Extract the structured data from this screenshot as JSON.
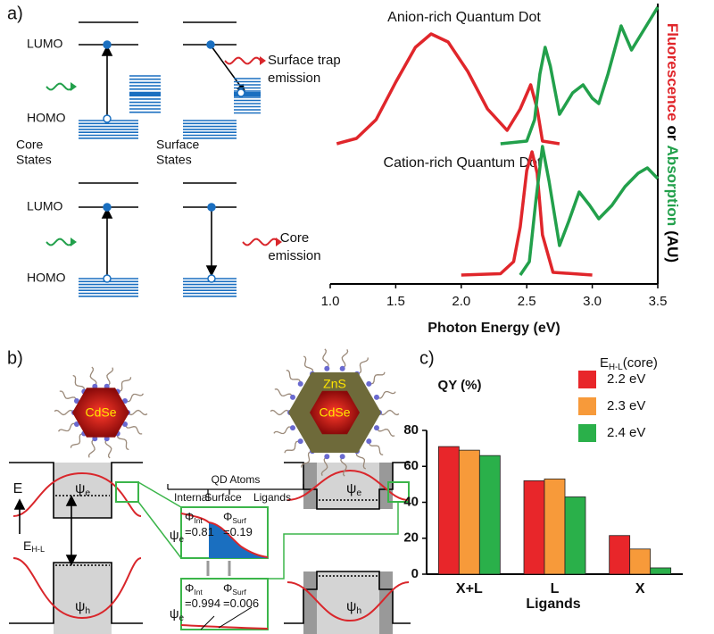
{
  "panel_labels": [
    "a)",
    "b)",
    "c)"
  ],
  "energy_diagrams": {
    "top": {
      "lumo": "LUMO",
      "homo": "HOMO",
      "core_states": [
        "Core",
        "States"
      ],
      "surface_states": [
        "Surface",
        "States"
      ],
      "emission": [
        "Surface trap",
        "emission"
      ]
    },
    "bottom": {
      "lumo": "LUMO",
      "homo": "HOMO",
      "emission": [
        "Core",
        "emission"
      ]
    }
  },
  "panel_b": {
    "particles": [
      {
        "core": "CdSe"
      },
      {
        "shell": "ZnS",
        "core": "CdSe"
      }
    ],
    "qd_atoms": {
      "title": "QD Atoms",
      "regions": [
        "Internal",
        "Surface",
        "Ligands"
      ]
    },
    "energy_axis": "E",
    "gap_label": {
      "symbol": "E",
      "sub": "H-L"
    },
    "band_labels": [
      {
        "symbol": "ψ",
        "sub": "e"
      },
      {
        "symbol": "ψ",
        "sub": "h"
      },
      {
        "symbol": "ψ",
        "sub": "e"
      },
      {
        "symbol": "ψ",
        "sub": "h"
      }
    ],
    "insets": [
      {
        "psi": {
          "symbol": "ψ",
          "sub": "e"
        },
        "phi_int": {
          "symbol": "Φ",
          "sub": "Int",
          "value": "=0.81"
        },
        "phi_surf": {
          "symbol": "Φ",
          "sub": "Surf",
          "value": "=0.19"
        }
      },
      {
        "psi": {
          "symbol": "ψ",
          "sub": "e"
        },
        "phi_int": {
          "symbol": "Φ",
          "sub": "Int",
          "value": "=0.994"
        },
        "phi_surf": {
          "symbol": "Φ",
          "sub": "Surf",
          "value": "=0.006"
        }
      }
    ]
  },
  "chart_data": [
    {
      "type": "line",
      "annotations": [
        "Anion-rich Quantum Dot",
        "Cation-rich Quantum Dot"
      ],
      "xlabel": "Photon Energy (eV)",
      "ylabel_parts": [
        {
          "text": "Fluorescence",
          "color": "#e0262b"
        },
        {
          "text": "or",
          "color": "#000000"
        },
        {
          "text": "Absorption",
          "color": "#22a04b"
        },
        {
          "text": "(AU)",
          "color": "#000000"
        }
      ],
      "xlim": [
        1.0,
        3.5
      ],
      "xticks": [
        {
          "value": 1,
          "label": "1.0"
        },
        1.5,
        {
          "value": 2,
          "label": "2.0"
        },
        2.5,
        {
          "value": 3,
          "label": "3.0"
        },
        3.5
      ],
      "ylim": [
        0,
        10
      ],
      "series": [
        {
          "color": "#e0262b",
          "x": [
            1.05,
            1.2,
            1.35,
            1.5,
            1.65,
            1.77,
            1.9,
            2.05,
            2.2,
            2.35,
            2.45,
            2.53,
            2.58,
            2.62,
            2.75
          ],
          "values": [
            4.9,
            5.1,
            5.8,
            7.2,
            8.5,
            9.0,
            8.7,
            7.6,
            6.2,
            5.4,
            6.2,
            7.1,
            6.2,
            5.0,
            4.9
          ]
        },
        {
          "color": "#22a04b",
          "x": [
            2.3,
            2.5,
            2.56,
            2.6,
            2.64,
            2.68,
            2.75,
            2.85,
            2.93,
            3.0,
            3.05,
            3.12,
            3.22,
            3.3,
            3.4,
            3.5
          ],
          "values": [
            4.9,
            5.0,
            5.8,
            7.5,
            8.5,
            7.8,
            6.0,
            6.8,
            7.1,
            6.6,
            6.4,
            7.5,
            9.3,
            8.4,
            9.2,
            10
          ]
        },
        {
          "color": "#e0262b",
          "x": [
            2.0,
            2.3,
            2.4,
            2.45,
            2.5,
            2.54,
            2.58,
            2.62,
            2.7,
            3.0
          ],
          "values": [
            0,
            0.05,
            0.5,
            1.8,
            3.9,
            4.6,
            3.8,
            1.5,
            0.1,
            0
          ]
        },
        {
          "color": "#22a04b",
          "x": [
            2.45,
            2.52,
            2.57,
            2.62,
            2.67,
            2.75,
            2.82,
            2.9,
            2.98,
            3.05,
            3.15,
            3.25,
            3.35,
            3.42,
            3.5
          ],
          "values": [
            0,
            0.5,
            2.8,
            4.8,
            3.5,
            1.1,
            2.0,
            3.1,
            2.6,
            2.1,
            2.6,
            3.3,
            3.8,
            4.0,
            3.6
          ]
        }
      ]
    },
    {
      "type": "bar",
      "ylabel": "QY (%)",
      "xlabel": "Ligands",
      "legend_title": {
        "symbol": "E",
        "sub": "H-L",
        "rest": "(core)"
      },
      "categories": [
        "X+L",
        "L",
        "X"
      ],
      "ylim": [
        0,
        80
      ],
      "yticks": [
        0,
        20,
        40,
        60,
        80
      ],
      "series": [
        {
          "name": "2.2 eV",
          "color": "#e8262a",
          "values": [
            71,
            52,
            21.5
          ]
        },
        {
          "name": "2.3 eV",
          "color": "#f79a3a",
          "values": [
            69,
            53,
            14
          ]
        },
        {
          "name": "2.4 eV",
          "color": "#2ab04a",
          "values": [
            66,
            43,
            3.5
          ]
        }
      ]
    }
  ]
}
